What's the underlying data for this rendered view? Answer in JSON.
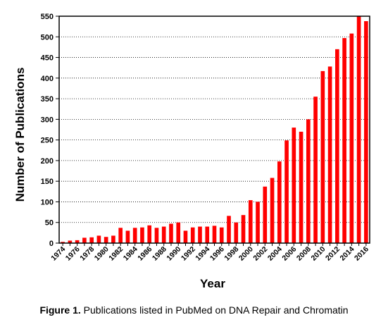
{
  "chart_data": {
    "type": "bar",
    "xlabel": "Year",
    "ylabel": "Number of Publications",
    "ylim": [
      0,
      550
    ],
    "yticks": [
      0,
      50,
      100,
      150,
      200,
      250,
      300,
      350,
      400,
      450,
      500,
      550
    ],
    "grid": "horizontal-dotted",
    "bar_color": "#ff0000",
    "categories": [
      "1974",
      "1975",
      "1976",
      "1977",
      "1978",
      "1979",
      "1980",
      "1981",
      "1982",
      "1983",
      "1984",
      "1985",
      "1986",
      "1987",
      "1988",
      "1989",
      "1990",
      "1991",
      "1992",
      "1993",
      "1994",
      "1995",
      "1996",
      "1997",
      "1998",
      "1999",
      "2000",
      "2001",
      "2002",
      "2003",
      "2004",
      "2005",
      "2006",
      "2007",
      "2008",
      "2009",
      "2010",
      "2011",
      "2012",
      "2013",
      "2014",
      "2015",
      "2016"
    ],
    "tick_labels": [
      "1974",
      "1976",
      "1978",
      "1980",
      "1982",
      "1984",
      "1986",
      "1988",
      "1990",
      "1992",
      "1994",
      "1996",
      "1998",
      "2000",
      "2002",
      "2004",
      "2006",
      "2008",
      "2010",
      "2012",
      "2014",
      "2016"
    ],
    "values": [
      3,
      6,
      7,
      13,
      14,
      18,
      15,
      18,
      37,
      30,
      37,
      38,
      43,
      37,
      40,
      47,
      50,
      30,
      38,
      40,
      40,
      42,
      38,
      66,
      50,
      68,
      104,
      100,
      137,
      158,
      198,
      249,
      280,
      270,
      300,
      355,
      417,
      428,
      470,
      497,
      508,
      550,
      538
    ]
  },
  "caption": {
    "label": "Figure 1.",
    "text": " Publications listed in PubMed on DNA Repair and Chromatin"
  }
}
